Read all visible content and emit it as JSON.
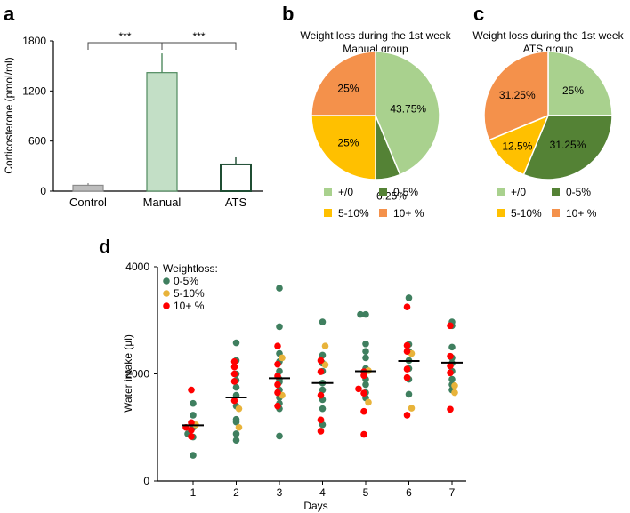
{
  "panel_labels": {
    "a": "a",
    "b": "b",
    "c": "c",
    "d": "d"
  },
  "colors": {
    "grey": "#bdbdbd",
    "light_green": "#a9d18e",
    "bar_green_fill": "#c3dfc6",
    "dark_green": "#548235",
    "yellow": "#ffc000",
    "orange": "#f4914b",
    "dot_green": "#3f7f5f",
    "dot_yellow": "#e8b33a",
    "dot_red": "#ff0000",
    "outline_green": "#1f4d33"
  },
  "chart_data": [
    {
      "id": "a",
      "type": "bar",
      "title": "",
      "ylabel": "Corticosterone (pmol/ml)",
      "xlabel": "",
      "categories": [
        "Control",
        "Manual",
        "ATS"
      ],
      "values": [
        70,
        1420,
        320
      ],
      "errors": [
        25,
        230,
        85
      ],
      "ylim": [
        0,
        1800
      ],
      "yticks": [
        0,
        600,
        1200,
        1800
      ],
      "significance": [
        {
          "from": 0,
          "to": 1,
          "label": "***"
        },
        {
          "from": 1,
          "to": 2,
          "label": "***"
        }
      ]
    },
    {
      "id": "b",
      "type": "pie",
      "title": "Weight loss during the 1st week",
      "subtitle": "Manual group",
      "slices": [
        {
          "label": "+/0",
          "value": 43.75,
          "text": "43.75%",
          "color": "#a9d18e"
        },
        {
          "label": "0-5%",
          "value": 6.25,
          "text": "6.25%",
          "color": "#548235"
        },
        {
          "label": "5-10%",
          "value": 25,
          "text": "25%",
          "color": "#ffc000"
        },
        {
          "label": "10+ %",
          "value": 25,
          "text": "25%",
          "color": "#f4914b"
        }
      ],
      "legend": [
        "+/0",
        "0-5%",
        "5-10%",
        "10+ %"
      ]
    },
    {
      "id": "c",
      "type": "pie",
      "title": "Weight loss during the 1st week",
      "subtitle": "ATS group",
      "slices": [
        {
          "label": "+/0",
          "value": 25,
          "text": "25%",
          "color": "#a9d18e"
        },
        {
          "label": "0-5%",
          "value": 31.25,
          "text": "31.25%",
          "color": "#548235"
        },
        {
          "label": "5-10%",
          "value": 12.5,
          "text": "12.5%",
          "color": "#ffc000"
        },
        {
          "label": "10+ %",
          "value": 31.25,
          "text": "31.25%",
          "color": "#f4914b"
        }
      ],
      "legend": [
        "+/0",
        "0-5%",
        "5-10%",
        "10+ %"
      ]
    },
    {
      "id": "d",
      "type": "scatter",
      "title": "",
      "xlabel": "Days",
      "ylabel": "Water intake (µl)",
      "ylim": [
        0,
        4000
      ],
      "yticks": [
        0,
        2000,
        4000
      ],
      "xticks": [
        1,
        2,
        3,
        4,
        5,
        6,
        7
      ],
      "legend_title": "Weightloss:",
      "legend": [
        "0-5%",
        "5-10%",
        "10+ %"
      ],
      "means": [
        1040,
        1560,
        1920,
        1830,
        2050,
        2240,
        2210
      ],
      "series": [
        {
          "name": "0-5%",
          "color": "#3f7f5f",
          "points": [
            [
              1,
              480
            ],
            [
              1,
              820
            ],
            [
              1,
              880
            ],
            [
              1,
              1000
            ],
            [
              1,
              1230
            ],
            [
              1,
              1450
            ],
            [
              2,
              760
            ],
            [
              2,
              880
            ],
            [
              2,
              1100
            ],
            [
              2,
              1150
            ],
            [
              2,
              1400
            ],
            [
              2,
              1600
            ],
            [
              2,
              1750
            ],
            [
              2,
              1880
            ],
            [
              2,
              2000
            ],
            [
              2,
              2250
            ],
            [
              2,
              2580
            ],
            [
              3,
              840
            ],
            [
              3,
              1350
            ],
            [
              3,
              1450
            ],
            [
              3,
              1560
            ],
            [
              3,
              1700
            ],
            [
              3,
              1850
            ],
            [
              3,
              1900
            ],
            [
              3,
              2050
            ],
            [
              3,
              2230
            ],
            [
              3,
              2380
            ],
            [
              3,
              2880
            ],
            [
              3,
              3600
            ],
            [
              4,
              1050
            ],
            [
              4,
              1350
            ],
            [
              4,
              1520
            ],
            [
              4,
              1700
            ],
            [
              4,
              1830
            ],
            [
              4,
              2050
            ],
            [
              4,
              2200
            ],
            [
              4,
              2350
            ],
            [
              4,
              2970
            ],
            [
              5,
              1550
            ],
            [
              5,
              1650
            ],
            [
              5,
              1800
            ],
            [
              5,
              1900
            ],
            [
              5,
              2100
            ],
            [
              5,
              2300
            ],
            [
              5,
              2420
            ],
            [
              5,
              2560
            ],
            [
              5,
              3110
            ],
            [
              5,
              3110
            ],
            [
              6,
              1620
            ],
            [
              6,
              1900
            ],
            [
              6,
              2100
            ],
            [
              6,
              2250
            ],
            [
              6,
              2420
            ],
            [
              6,
              2550
            ],
            [
              6,
              3420
            ],
            [
              7,
              1700
            ],
            [
              7,
              1800
            ],
            [
              7,
              1900
            ],
            [
              7,
              2050
            ],
            [
              7,
              2200
            ],
            [
              7,
              2300
            ],
            [
              7,
              2500
            ],
            [
              7,
              2900
            ],
            [
              7,
              2970
            ]
          ]
        },
        {
          "name": "5-10%",
          "color": "#e8b33a",
          "points": [
            [
              1,
              1050
            ],
            [
              2,
              1000
            ],
            [
              2,
              1350
            ],
            [
              3,
              1600
            ],
            [
              3,
              2300
            ],
            [
              4,
              2170
            ],
            [
              4,
              2520
            ],
            [
              5,
              1470
            ],
            [
              5,
              2060
            ],
            [
              6,
              1360
            ],
            [
              6,
              2380
            ],
            [
              7,
              1650
            ],
            [
              7,
              1780
            ]
          ]
        },
        {
          "name": "10+ %",
          "color": "#ff0000",
          "points": [
            [
              1,
              830
            ],
            [
              1,
              950
            ],
            [
              1,
              1000
            ],
            [
              1,
              1090
            ],
            [
              1,
              1700
            ],
            [
              2,
              1500
            ],
            [
              2,
              1860
            ],
            [
              2,
              2000
            ],
            [
              2,
              2130
            ],
            [
              2,
              2230
            ],
            [
              3,
              1400
            ],
            [
              3,
              1650
            ],
            [
              3,
              1800
            ],
            [
              3,
              1960
            ],
            [
              3,
              2180
            ],
            [
              3,
              2520
            ],
            [
              4,
              930
            ],
            [
              4,
              1140
            ],
            [
              4,
              1600
            ],
            [
              4,
              2040
            ],
            [
              4,
              2250
            ],
            [
              5,
              870
            ],
            [
              5,
              1300
            ],
            [
              5,
              1640
            ],
            [
              5,
              1720
            ],
            [
              5,
              1970
            ],
            [
              5,
              2040
            ],
            [
              6,
              1230
            ],
            [
              6,
              1930
            ],
            [
              6,
              2090
            ],
            [
              6,
              2420
            ],
            [
              6,
              2530
            ],
            [
              6,
              3250
            ],
            [
              7,
              1340
            ],
            [
              7,
              2020
            ],
            [
              7,
              2150
            ],
            [
              7,
              2330
            ],
            [
              7,
              2900
            ]
          ]
        }
      ]
    }
  ]
}
